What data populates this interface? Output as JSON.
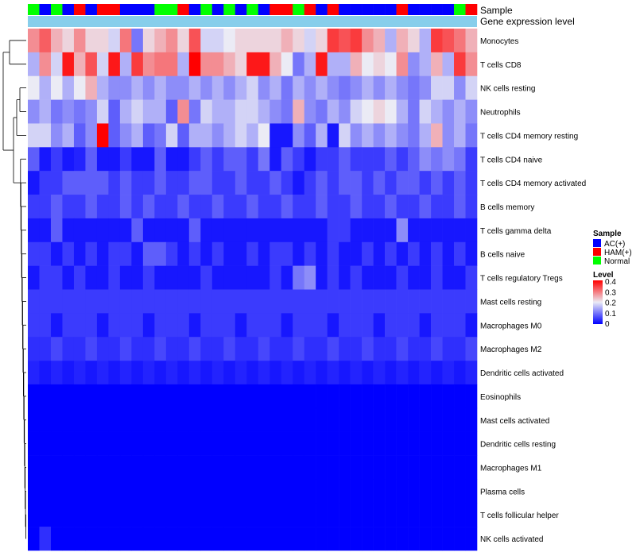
{
  "chart_data": {
    "type": "heatmap",
    "annotation_labels": {
      "sample": "Sample",
      "expression": "Gene expression level"
    },
    "rows": [
      "Monocytes",
      "T cells CD8",
      "NK cells resting",
      "Neutrophils",
      "T cells CD4 memory resting",
      "T cells CD4 naive",
      "T cells CD4 memory activated",
      "B cells memory",
      "T cells gamma delta",
      "B cells naive",
      "T cells regulatory  Tregs",
      "Mast cells resting",
      "Macrophages M0",
      "Macrophages M2",
      "Dendritic cells activated",
      "Eosinophils",
      "Mast cells activated",
      "Dendritic cells resting",
      "Macrophages M1",
      "Plasma cells",
      "T cells follicular helper",
      "NK cells activated"
    ],
    "samples": [
      "N",
      "A",
      "N",
      "A",
      "H",
      "A",
      "H",
      "H",
      "A",
      "A",
      "A",
      "N",
      "N",
      "H",
      "A",
      "N",
      "A",
      "N",
      "A",
      "N",
      "A",
      "H",
      "H",
      "N",
      "H",
      "A",
      "H",
      "A",
      "A",
      "A",
      "A",
      "A",
      "H",
      "A",
      "A",
      "A",
      "A",
      "N",
      "H"
    ],
    "expression_bar": 0.12,
    "values": [
      [
        0.28,
        0.32,
        0.25,
        0.22,
        0.28,
        0.22,
        0.22,
        0.18,
        0.3,
        0.1,
        0.22,
        0.25,
        0.28,
        0.22,
        0.33,
        0.18,
        0.18,
        0.2,
        0.22,
        0.22,
        0.22,
        0.22,
        0.25,
        0.22,
        0.18,
        0.22,
        0.35,
        0.33,
        0.35,
        0.28,
        0.25,
        0.15,
        0.25,
        0.22,
        0.15,
        0.35,
        0.33,
        0.3,
        0.25
      ],
      [
        0.15,
        0.28,
        0.18,
        0.38,
        0.25,
        0.33,
        0.18,
        0.38,
        0.15,
        0.35,
        0.28,
        0.3,
        0.3,
        0.15,
        0.4,
        0.28,
        0.28,
        0.25,
        0.22,
        0.38,
        0.38,
        0.25,
        0.2,
        0.1,
        0.15,
        0.38,
        0.15,
        0.15,
        0.25,
        0.2,
        0.22,
        0.2,
        0.28,
        0.12,
        0.15,
        0.25,
        0.15,
        0.35,
        0.28
      ],
      [
        0.2,
        0.15,
        0.2,
        0.15,
        0.2,
        0.25,
        0.15,
        0.12,
        0.12,
        0.15,
        0.12,
        0.15,
        0.12,
        0.12,
        0.15,
        0.12,
        0.15,
        0.12,
        0.15,
        0.18,
        0.12,
        0.15,
        0.1,
        0.15,
        0.12,
        0.15,
        0.12,
        0.1,
        0.12,
        0.15,
        0.12,
        0.15,
        0.12,
        0.1,
        0.12,
        0.18,
        0.18,
        0.12,
        0.18
      ],
      [
        0.12,
        0.15,
        0.1,
        0.12,
        0.1,
        0.12,
        0.18,
        0.08,
        0.15,
        0.18,
        0.15,
        0.15,
        0.08,
        0.28,
        0.1,
        0.18,
        0.15,
        0.15,
        0.18,
        0.18,
        0.15,
        0.12,
        0.1,
        0.25,
        0.12,
        0.1,
        0.15,
        0.12,
        0.18,
        0.2,
        0.22,
        0.2,
        0.15,
        0.1,
        0.18,
        0.15,
        0.12,
        0.15,
        0.12
      ],
      [
        0.18,
        0.18,
        0.12,
        0.15,
        0.08,
        0.12,
        0.4,
        0.08,
        0.12,
        0.15,
        0.08,
        0.1,
        0.18,
        0.08,
        0.15,
        0.15,
        0.12,
        0.15,
        0.18,
        0.15,
        0.2,
        0.02,
        0.02,
        0.12,
        0.08,
        0.15,
        0.02,
        0.18,
        0.12,
        0.15,
        0.12,
        0.15,
        0.12,
        0.1,
        0.15,
        0.25,
        0.12,
        0.15,
        0.1
      ],
      [
        0.08,
        0.02,
        0.05,
        0.02,
        0.03,
        0.08,
        0.02,
        0.02,
        0.05,
        0.02,
        0.02,
        0.08,
        0.02,
        0.02,
        0.05,
        0.08,
        0.05,
        0.08,
        0.08,
        0.05,
        0.1,
        0.02,
        0.08,
        0.05,
        0.02,
        0.05,
        0.05,
        0.08,
        0.05,
        0.05,
        0.05,
        0.08,
        0.05,
        0.08,
        0.12,
        0.1,
        0.12,
        0.1,
        0.05
      ],
      [
        0.02,
        0.05,
        0.05,
        0.08,
        0.08,
        0.08,
        0.08,
        0.05,
        0.08,
        0.05,
        0.05,
        0.08,
        0.05,
        0.05,
        0.08,
        0.08,
        0.05,
        0.05,
        0.08,
        0.05,
        0.05,
        0.08,
        0.05,
        0.02,
        0.05,
        0.08,
        0.05,
        0.08,
        0.08,
        0.05,
        0.08,
        0.05,
        0.08,
        0.08,
        0.05,
        0.08,
        0.05,
        0.08,
        0.05
      ],
      [
        0.05,
        0.05,
        0.08,
        0.05,
        0.05,
        0.08,
        0.05,
        0.05,
        0.08,
        0.05,
        0.08,
        0.05,
        0.05,
        0.08,
        0.05,
        0.05,
        0.08,
        0.05,
        0.05,
        0.08,
        0.05,
        0.05,
        0.08,
        0.05,
        0.05,
        0.08,
        0.05,
        0.05,
        0.08,
        0.05,
        0.05,
        0.08,
        0.05,
        0.05,
        0.08,
        0.05,
        0.05,
        0.08,
        0.05
      ],
      [
        0.02,
        0.02,
        0.08,
        0.02,
        0.02,
        0.02,
        0.02,
        0.02,
        0.02,
        0.08,
        0.02,
        0.02,
        0.02,
        0.02,
        0.08,
        0.02,
        0.02,
        0.02,
        0.02,
        0.02,
        0.02,
        0.02,
        0.02,
        0.02,
        0.02,
        0.02,
        0.05,
        0.05,
        0.02,
        0.02,
        0.02,
        0.02,
        0.12,
        0.02,
        0.02,
        0.02,
        0.02,
        0.02,
        0.02
      ],
      [
        0.05,
        0.05,
        0.02,
        0.05,
        0.02,
        0.05,
        0.02,
        0.05,
        0.05,
        0.02,
        0.08,
        0.08,
        0.05,
        0.02,
        0.05,
        0.02,
        0.05,
        0.02,
        0.02,
        0.05,
        0.02,
        0.05,
        0.05,
        0.02,
        0.05,
        0.02,
        0.05,
        0.02,
        0.02,
        0.05,
        0.02,
        0.05,
        0.02,
        0.05,
        0.02,
        0.05,
        0.02,
        0.05,
        0.02
      ],
      [
        0.02,
        0.05,
        0.05,
        0.02,
        0.05,
        0.02,
        0.02,
        0.05,
        0.02,
        0.02,
        0.05,
        0.02,
        0.02,
        0.02,
        0.02,
        0.05,
        0.02,
        0.02,
        0.02,
        0.02,
        0.02,
        0.05,
        0.02,
        0.1,
        0.12,
        0.02,
        0.05,
        0.02,
        0.05,
        0.02,
        0.02,
        0.02,
        0.05,
        0.02,
        0.02,
        0.05,
        0.02,
        0.02,
        0.05
      ],
      [
        0.05,
        0.05,
        0.05,
        0.05,
        0.05,
        0.05,
        0.05,
        0.05,
        0.05,
        0.05,
        0.05,
        0.05,
        0.05,
        0.05,
        0.05,
        0.05,
        0.05,
        0.05,
        0.05,
        0.05,
        0.05,
        0.05,
        0.05,
        0.05,
        0.05,
        0.05,
        0.05,
        0.05,
        0.05,
        0.05,
        0.05,
        0.05,
        0.05,
        0.05,
        0.05,
        0.05,
        0.05,
        0.05,
        0.05
      ],
      [
        0.05,
        0.05,
        0.02,
        0.05,
        0.05,
        0.05,
        0.02,
        0.05,
        0.05,
        0.05,
        0.02,
        0.05,
        0.05,
        0.05,
        0.02,
        0.05,
        0.05,
        0.05,
        0.02,
        0.05,
        0.05,
        0.05,
        0.02,
        0.05,
        0.05,
        0.05,
        0.02,
        0.05,
        0.05,
        0.05,
        0.02,
        0.05,
        0.05,
        0.05,
        0.02,
        0.05,
        0.05,
        0.05,
        0.02
      ],
      [
        0.04,
        0.04,
        0.06,
        0.04,
        0.04,
        0.06,
        0.04,
        0.04,
        0.06,
        0.04,
        0.04,
        0.06,
        0.04,
        0.04,
        0.06,
        0.04,
        0.04,
        0.06,
        0.04,
        0.04,
        0.06,
        0.04,
        0.04,
        0.06,
        0.04,
        0.04,
        0.06,
        0.04,
        0.04,
        0.06,
        0.04,
        0.04,
        0.06,
        0.04,
        0.04,
        0.06,
        0.04,
        0.04,
        0.06
      ],
      [
        0.03,
        0.02,
        0.03,
        0.02,
        0.03,
        0.02,
        0.03,
        0.02,
        0.03,
        0.02,
        0.03,
        0.02,
        0.03,
        0.02,
        0.03,
        0.02,
        0.03,
        0.02,
        0.03,
        0.02,
        0.03,
        0.02,
        0.03,
        0.02,
        0.03,
        0.02,
        0.03,
        0.02,
        0.03,
        0.02,
        0.03,
        0.02,
        0.03,
        0.02,
        0.03,
        0.02,
        0.03,
        0.02,
        0.03
      ],
      [
        0,
        0,
        0,
        0,
        0,
        0,
        0,
        0,
        0,
        0,
        0,
        0,
        0,
        0,
        0,
        0,
        0,
        0,
        0,
        0,
        0,
        0,
        0,
        0,
        0,
        0,
        0,
        0,
        0,
        0,
        0,
        0,
        0,
        0,
        0,
        0,
        0,
        0,
        0
      ],
      [
        0,
        0,
        0,
        0,
        0,
        0,
        0,
        0,
        0,
        0,
        0,
        0,
        0,
        0,
        0,
        0,
        0,
        0,
        0,
        0,
        0,
        0,
        0,
        0,
        0,
        0,
        0,
        0,
        0,
        0,
        0,
        0,
        0,
        0,
        0,
        0,
        0,
        0,
        0
      ],
      [
        0,
        0,
        0,
        0,
        0,
        0,
        0,
        0,
        0,
        0,
        0,
        0,
        0,
        0,
        0,
        0,
        0,
        0,
        0,
        0,
        0,
        0,
        0,
        0,
        0,
        0,
        0,
        0,
        0,
        0,
        0,
        0,
        0,
        0,
        0,
        0,
        0,
        0,
        0
      ],
      [
        0,
        0,
        0,
        0,
        0,
        0,
        0,
        0,
        0,
        0,
        0,
        0,
        0,
        0,
        0,
        0,
        0,
        0,
        0,
        0,
        0,
        0,
        0,
        0,
        0,
        0,
        0,
        0,
        0,
        0,
        0,
        0,
        0,
        0,
        0,
        0,
        0,
        0,
        0
      ],
      [
        0,
        0,
        0,
        0,
        0,
        0,
        0,
        0,
        0,
        0,
        0,
        0,
        0,
        0,
        0,
        0,
        0,
        0,
        0,
        0,
        0,
        0,
        0,
        0,
        0,
        0,
        0,
        0,
        0,
        0,
        0,
        0,
        0,
        0,
        0,
        0,
        0,
        0,
        0
      ],
      [
        0,
        0,
        0,
        0,
        0,
        0,
        0,
        0,
        0,
        0,
        0,
        0,
        0,
        0,
        0,
        0,
        0,
        0,
        0,
        0,
        0,
        0,
        0,
        0,
        0,
        0,
        0,
        0,
        0,
        0,
        0,
        0,
        0,
        0,
        0,
        0,
        0,
        0,
        0
      ],
      [
        0,
        0.04,
        0,
        0,
        0,
        0,
        0,
        0,
        0,
        0,
        0,
        0,
        0,
        0,
        0,
        0,
        0,
        0,
        0,
        0,
        0,
        0,
        0,
        0,
        0,
        0,
        0,
        0,
        0,
        0,
        0,
        0,
        0,
        0,
        0,
        0,
        0,
        0,
        0
      ]
    ],
    "legend_sample": {
      "title": "Sample",
      "entries": [
        {
          "code": "A",
          "label": "AC(+)",
          "color": "#0000ff"
        },
        {
          "code": "H",
          "label": "HAM(+)",
          "color": "#ff0000"
        },
        {
          "code": "N",
          "label": "Normal",
          "color": "#00ff00"
        }
      ]
    },
    "legend_level": {
      "title": "Level",
      "range": [
        0,
        0.4
      ],
      "ticks": [
        "0.4",
        "0.3",
        "0.2",
        "0.1",
        "0"
      ],
      "colors": {
        "low": "#0000ff",
        "mid": "#ebebf5",
        "high": "#ff0000"
      }
    },
    "expression_color": "#87ceeb"
  }
}
